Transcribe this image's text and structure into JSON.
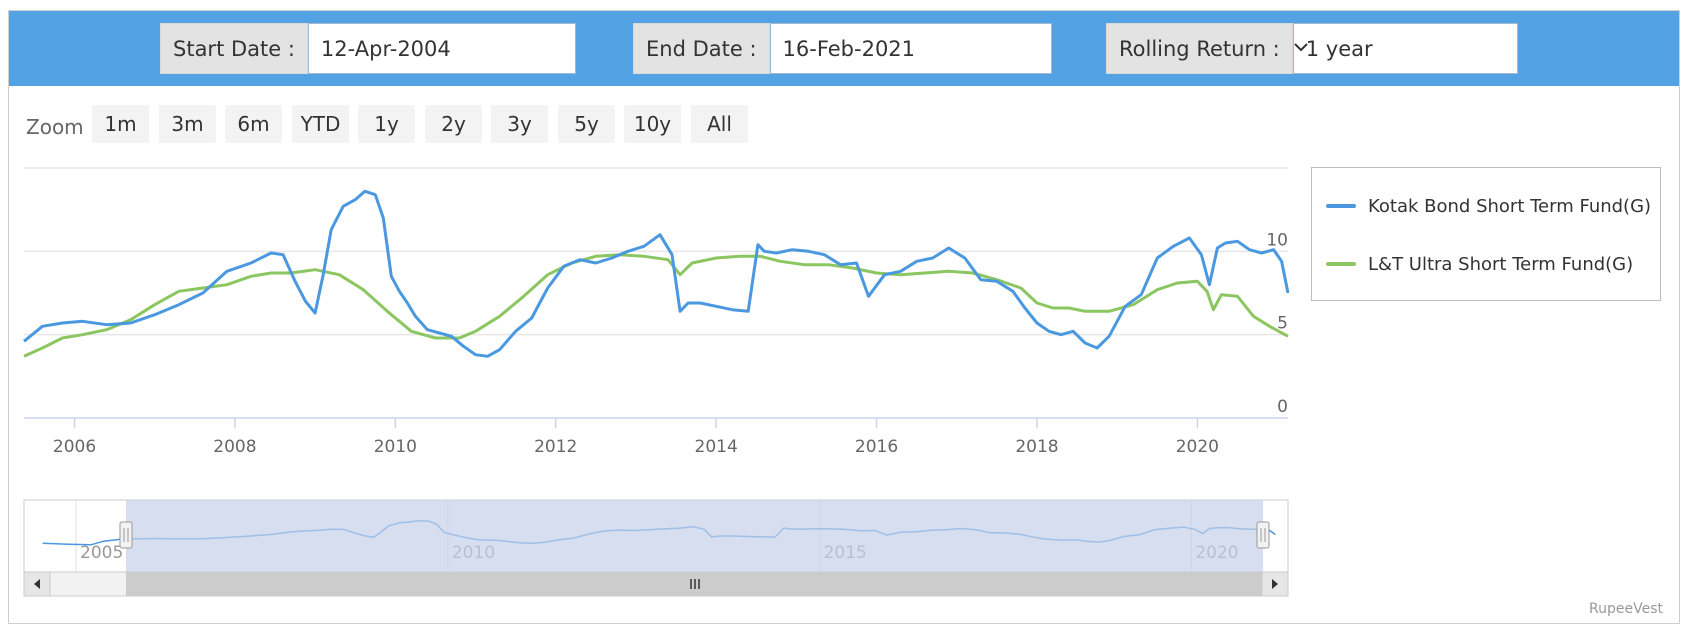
{
  "controls": {
    "start_label": "Start Date :",
    "start_value": "12-Apr-2004",
    "end_label": "End Date :",
    "end_value": "16-Feb-2021",
    "rolling_label": "Rolling Return :",
    "rolling_value": "1 year"
  },
  "zoom": {
    "label": "Zoom",
    "buttons": [
      "1m",
      "3m",
      "6m",
      "YTD",
      "1y",
      "2y",
      "3y",
      "5y",
      "10y",
      "All"
    ]
  },
  "credit": "RupeeVest",
  "chart_data": {
    "type": "line",
    "x_ticks": [
      "2006",
      "2008",
      "2010",
      "2012",
      "2014",
      "2016",
      "2018",
      "2020"
    ],
    "y_ticks": [
      "0",
      "5",
      "10"
    ],
    "ylim": [
      0,
      15
    ],
    "xlim": [
      2005.37,
      2021.13
    ],
    "grid": true,
    "legend_position": "right",
    "navigator_ticks": [
      "2005",
      "2010",
      "2015",
      "2020"
    ],
    "colors": {
      "kotak": "#4a98e0",
      "lt": "#8cc660",
      "topbar": "#53a2e4",
      "navigator_mask": "#c5d0e8"
    },
    "series": [
      {
        "name": "Kotak Bond Short Term Fund(G)",
        "x": [
          2005.37,
          2005.6,
          2005.85,
          2006.1,
          2006.4,
          2006.7,
          2007.0,
          2007.3,
          2007.6,
          2007.9,
          2008.2,
          2008.45,
          2008.6,
          2008.75,
          2008.88,
          2009.0,
          2009.1,
          2009.2,
          2009.35,
          2009.5,
          2009.62,
          2009.75,
          2009.85,
          2009.95,
          2010.05,
          2010.15,
          2010.25,
          2010.4,
          2010.55,
          2010.7,
          2010.85,
          2011.0,
          2011.15,
          2011.3,
          2011.5,
          2011.7,
          2011.9,
          2012.1,
          2012.3,
          2012.5,
          2012.7,
          2012.9,
          2013.1,
          2013.3,
          2013.45,
          2013.55,
          2013.65,
          2013.8,
          2014.0,
          2014.2,
          2014.4,
          2014.52,
          2014.6,
          2014.75,
          2014.95,
          2015.15,
          2015.35,
          2015.55,
          2015.75,
          2015.9,
          2016.1,
          2016.3,
          2016.5,
          2016.7,
          2016.9,
          2017.1,
          2017.3,
          2017.5,
          2017.7,
          2017.85,
          2018.0,
          2018.15,
          2018.3,
          2018.45,
          2018.6,
          2018.75,
          2018.9,
          2019.1,
          2019.3,
          2019.5,
          2019.7,
          2019.9,
          2020.05,
          2020.15,
          2020.25,
          2020.35,
          2020.5,
          2020.65,
          2020.8,
          2020.95,
          2021.05,
          2021.13
        ],
        "values": [
          4.6,
          5.5,
          5.7,
          5.8,
          5.6,
          5.7,
          6.2,
          6.8,
          7.5,
          8.8,
          9.3,
          9.9,
          9.8,
          8.2,
          7.0,
          6.3,
          8.6,
          11.3,
          12.7,
          13.1,
          13.6,
          13.4,
          12.0,
          8.5,
          7.6,
          6.9,
          6.1,
          5.3,
          5.1,
          4.9,
          4.3,
          3.8,
          3.7,
          4.1,
          5.2,
          6.0,
          7.8,
          9.1,
          9.5,
          9.3,
          9.6,
          10.0,
          10.3,
          11.0,
          9.8,
          6.4,
          6.9,
          6.9,
          6.7,
          6.5,
          6.4,
          10.4,
          10.0,
          9.9,
          10.1,
          10.0,
          9.8,
          9.2,
          9.3,
          7.3,
          8.6,
          8.8,
          9.4,
          9.6,
          10.2,
          9.6,
          8.3,
          8.2,
          7.6,
          6.6,
          5.7,
          5.2,
          5.0,
          5.2,
          4.5,
          4.2,
          4.9,
          6.7,
          7.4,
          9.6,
          10.3,
          10.8,
          9.8,
          8.0,
          10.2,
          10.5,
          10.6,
          10.1,
          9.9,
          10.1,
          9.4,
          7.5
        ]
      },
      {
        "name": "L&T Ultra Short Term Fund(G)",
        "x": [
          2005.37,
          2005.6,
          2005.85,
          2006.1,
          2006.4,
          2006.7,
          2007.0,
          2007.3,
          2007.6,
          2007.9,
          2008.2,
          2008.45,
          2008.7,
          2009.0,
          2009.3,
          2009.6,
          2009.9,
          2010.2,
          2010.5,
          2010.8,
          2011.0,
          2011.3,
          2011.6,
          2011.9,
          2012.2,
          2012.5,
          2012.8,
          2013.1,
          2013.4,
          2013.55,
          2013.7,
          2014.0,
          2014.3,
          2014.55,
          2014.8,
          2015.1,
          2015.4,
          2015.7,
          2016.0,
          2016.3,
          2016.6,
          2016.9,
          2017.2,
          2017.5,
          2017.8,
          2018.0,
          2018.2,
          2018.4,
          2018.6,
          2018.9,
          2019.2,
          2019.5,
          2019.75,
          2020.0,
          2020.12,
          2020.2,
          2020.3,
          2020.5,
          2020.7,
          2020.9,
          2021.13
        ],
        "values": [
          3.7,
          4.2,
          4.8,
          5.0,
          5.3,
          5.9,
          6.8,
          7.6,
          7.8,
          8.0,
          8.5,
          8.7,
          8.7,
          8.9,
          8.6,
          7.7,
          6.4,
          5.2,
          4.8,
          4.8,
          5.2,
          6.1,
          7.3,
          8.6,
          9.3,
          9.7,
          9.8,
          9.7,
          9.5,
          8.6,
          9.3,
          9.6,
          9.7,
          9.7,
          9.4,
          9.2,
          9.2,
          9.0,
          8.7,
          8.6,
          8.7,
          8.8,
          8.7,
          8.3,
          7.8,
          6.9,
          6.6,
          6.6,
          6.4,
          6.4,
          6.8,
          7.7,
          8.1,
          8.2,
          7.6,
          6.5,
          7.4,
          7.3,
          6.1,
          5.5,
          4.9
        ]
      }
    ]
  }
}
